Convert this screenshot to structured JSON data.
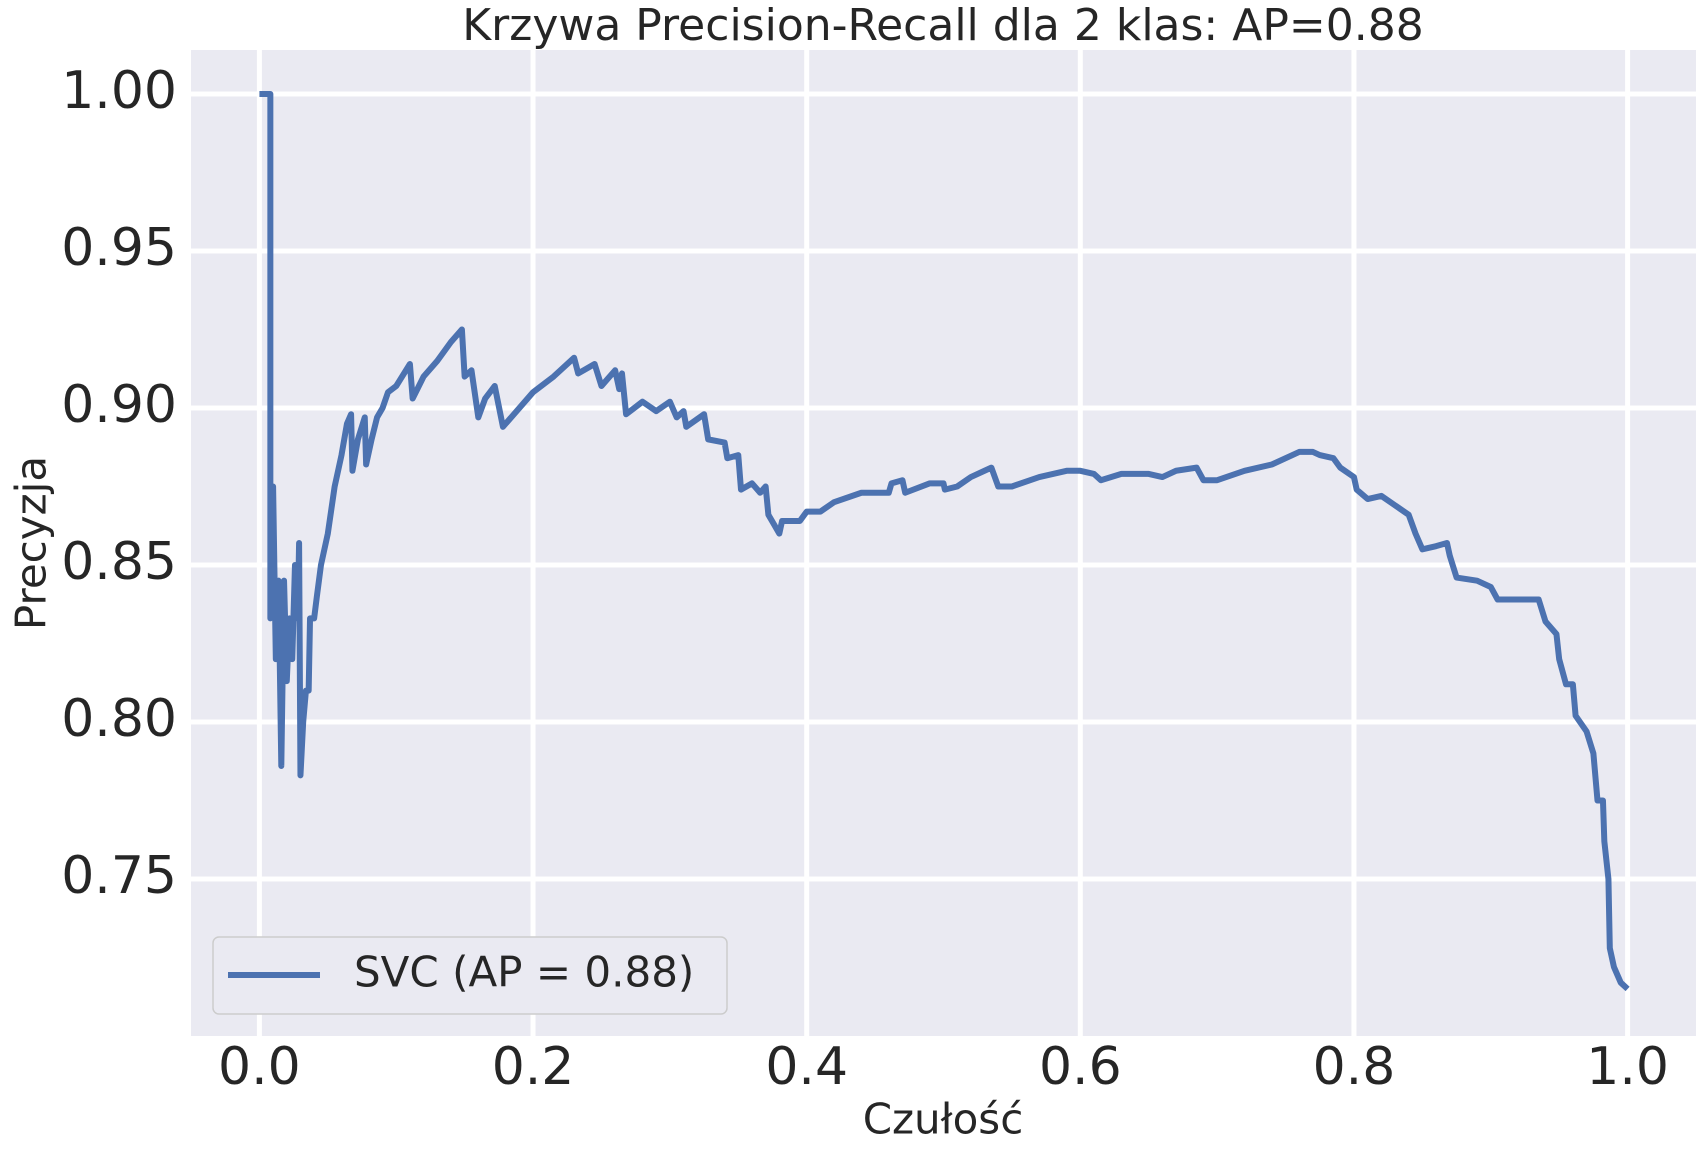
{
  "chart_data": {
    "type": "line",
    "title": "Krzywa Precision-Recall dla 2 klas: AP=0.88",
    "xlabel": "Czułość",
    "ylabel": "Precyzja",
    "x": [
      0,
      0.008,
      0.008,
      0.01,
      0.012,
      0.014,
      0.016,
      0.018,
      0.02,
      0.022,
      0.024,
      0.026,
      0.028,
      0.029,
      0.03,
      0.032,
      0.034,
      0.036,
      0.037,
      0.04,
      0.042,
      0.045,
      0.05,
      0.055,
      0.06,
      0.064,
      0.067,
      0.068,
      0.072,
      0.077,
      0.078,
      0.082,
      0.086,
      0.09,
      0.094,
      0.1,
      0.11,
      0.112,
      0.12,
      0.13,
      0.14,
      0.148,
      0.15,
      0.155,
      0.16,
      0.165,
      0.172,
      0.178,
      0.19,
      0.2,
      0.215,
      0.23,
      0.233,
      0.245,
      0.25,
      0.26,
      0.263,
      0.265,
      0.268,
      0.28,
      0.29,
      0.3,
      0.305,
      0.31,
      0.312,
      0.325,
      0.328,
      0.34,
      0.342,
      0.35,
      0.352,
      0.36,
      0.366,
      0.37,
      0.372,
      0.376,
      0.38,
      0.382,
      0.395,
      0.4,
      0.41,
      0.42,
      0.44,
      0.46,
      0.462,
      0.47,
      0.472,
      0.49,
      0.5,
      0.501,
      0.51,
      0.52,
      0.53,
      0.535,
      0.54,
      0.55,
      0.57,
      0.59,
      0.6,
      0.61,
      0.615,
      0.63,
      0.65,
      0.66,
      0.67,
      0.685,
      0.69,
      0.7,
      0.72,
      0.74,
      0.76,
      0.77,
      0.775,
      0.785,
      0.79,
      0.8,
      0.802,
      0.81,
      0.82,
      0.83,
      0.84,
      0.845,
      0.85,
      0.86,
      0.868,
      0.87,
      0.875,
      0.89,
      0.9,
      0.905,
      0.92,
      0.935,
      0.94,
      0.948,
      0.95,
      0.955,
      0.96,
      0.962,
      0.97,
      0.975,
      0.978,
      0.982,
      0.983,
      0.986,
      0.987,
      0.99,
      0.995,
      1.0
    ],
    "series": [
      {
        "name": "SVC (AP = 0.88)",
        "color": "#4c72b0",
        "values": [
          1.0,
          1.0,
          0.833,
          0.875,
          0.82,
          0.845,
          0.786,
          0.845,
          0.813,
          0.833,
          0.82,
          0.85,
          0.833,
          0.857,
          0.783,
          0.8,
          0.81,
          0.81,
          0.833,
          0.833,
          0.84,
          0.85,
          0.86,
          0.875,
          0.885,
          0.895,
          0.898,
          0.88,
          0.89,
          0.897,
          0.882,
          0.89,
          0.897,
          0.9,
          0.905,
          0.907,
          0.914,
          0.903,
          0.91,
          0.915,
          0.921,
          0.925,
          0.91,
          0.912,
          0.897,
          0.903,
          0.907,
          0.894,
          0.9,
          0.905,
          0.91,
          0.916,
          0.911,
          0.914,
          0.907,
          0.912,
          0.906,
          0.911,
          0.898,
          0.902,
          0.899,
          0.902,
          0.897,
          0.899,
          0.894,
          0.898,
          0.89,
          0.889,
          0.884,
          0.885,
          0.874,
          0.876,
          0.873,
          0.875,
          0.866,
          0.863,
          0.86,
          0.864,
          0.864,
          0.867,
          0.867,
          0.87,
          0.873,
          0.873,
          0.876,
          0.877,
          0.873,
          0.876,
          0.876,
          0.874,
          0.875,
          0.878,
          0.88,
          0.881,
          0.875,
          0.875,
          0.878,
          0.88,
          0.88,
          0.879,
          0.877,
          0.879,
          0.879,
          0.878,
          0.88,
          0.881,
          0.877,
          0.877,
          0.88,
          0.882,
          0.886,
          0.886,
          0.885,
          0.884,
          0.881,
          0.878,
          0.874,
          0.871,
          0.872,
          0.869,
          0.866,
          0.86,
          0.855,
          0.856,
          0.857,
          0.853,
          0.846,
          0.845,
          0.843,
          0.839,
          0.839,
          0.839,
          0.832,
          0.828,
          0.82,
          0.812,
          0.812,
          0.802,
          0.797,
          0.79,
          0.775,
          0.775,
          0.762,
          0.75,
          0.728,
          0.722,
          0.717,
          0.715
        ]
      }
    ],
    "xlim": [
      -0.05,
      1.05
    ],
    "ylim": [
      0.7,
      1.014
    ],
    "xticks": [
      {
        "value": 0,
        "label": "0.0"
      },
      0.2,
      0.4,
      0.6,
      0.8,
      {
        "value": 1,
        "label": "1.0"
      }
    ],
    "yticks": [
      0.75,
      {
        "value": 0.8,
        "label": "0.80"
      },
      0.85,
      {
        "value": 0.9,
        "label": "0.90"
      },
      0.95,
      {
        "value": 1,
        "label": "1.00"
      }
    ],
    "grid": true,
    "legend": "lower left"
  }
}
